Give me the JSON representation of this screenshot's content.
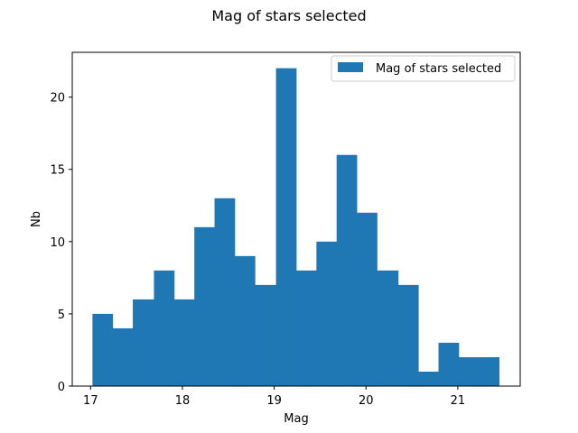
{
  "chart_data": {
    "type": "bar",
    "title": "Mag of stars selected",
    "xlabel": "Mag",
    "ylabel": "Nb",
    "xlim": [
      16.8,
      21.68
    ],
    "ylim": [
      0,
      23.1
    ],
    "x_ticks": [
      17,
      18,
      19,
      20,
      21
    ],
    "y_ticks": [
      0,
      5,
      10,
      15,
      20
    ],
    "bin_edges": [
      17.02,
      17.24,
      17.46,
      17.69,
      17.91,
      18.13,
      18.35,
      18.57,
      18.79,
      19.02,
      19.24,
      19.46,
      19.68,
      19.9,
      20.12,
      20.35,
      20.57,
      20.79,
      21.01,
      21.23,
      21.45
    ],
    "series": [
      {
        "name": "Mag of stars selected",
        "color": "#1f77b4",
        "values": [
          5,
          4,
          6,
          8,
          6,
          11,
          13,
          9,
          7,
          22,
          8,
          10,
          16,
          12,
          8,
          7,
          1,
          3,
          2,
          2
        ]
      }
    ],
    "legend": {
      "position": "top-right"
    },
    "grid": false
  }
}
